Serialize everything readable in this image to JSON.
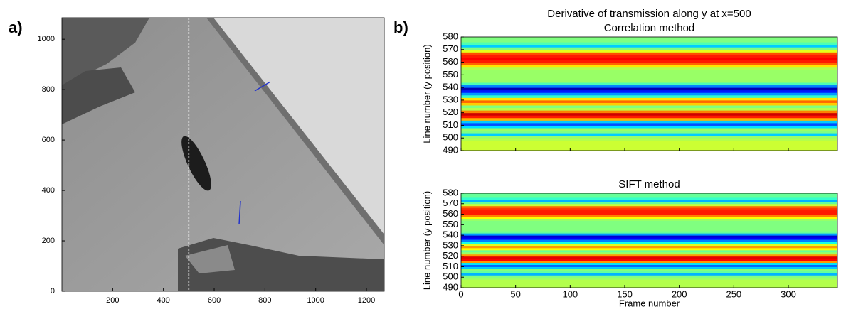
{
  "chart_data": [
    {
      "type": "image",
      "label": "a)",
      "xlim": [
        0,
        1270
      ],
      "ylim": [
        0,
        1085
      ],
      "xticks": [
        200,
        400,
        600,
        800,
        1000,
        1200
      ],
      "yticks": [
        0,
        200,
        400,
        600,
        800,
        1000
      ],
      "vline": 500
    },
    {
      "type": "heatmap",
      "label": "b)",
      "suptitle": "Derivative of transmission along y at x=500",
      "title": "Correlation method",
      "ylabel": "Line number (y position)",
      "colormap": "jet",
      "clim": [
        -1,
        1
      ],
      "xtick_labels": false,
      "xlim": [
        0,
        345
      ],
      "ylim": [
        490,
        580
      ],
      "xticks": [
        0,
        50,
        100,
        150,
        200,
        250,
        300
      ],
      "yticks": [
        490,
        500,
        510,
        520,
        530,
        540,
        550,
        560,
        570,
        580
      ],
      "y_edges": [
        490,
        492,
        494,
        496,
        498,
        500,
        502,
        504,
        506,
        508,
        510,
        512,
        514,
        516,
        518,
        520,
        522,
        524,
        526,
        528,
        530,
        532,
        534,
        536,
        538,
        540,
        542,
        544,
        546,
        548,
        550,
        552,
        554,
        556,
        558,
        560,
        562,
        564,
        566,
        568,
        570,
        572,
        574,
        576,
        578,
        580
      ],
      "values": [
        0.15,
        0.15,
        0.15,
        0.15,
        0.1,
        0.05,
        -0.35,
        0.0,
        0.05,
        -0.3,
        -0.6,
        -0.35,
        0.4,
        0.7,
        0.85,
        0.5,
        0.1,
        0.0,
        0.35,
        0.55,
        0.3,
        -0.15,
        -0.45,
        -0.7,
        -0.9,
        -0.5,
        -0.1,
        0.05,
        0.05,
        0.05,
        0.05,
        0.05,
        0.1,
        0.3,
        0.55,
        0.7,
        0.75,
        0.7,
        0.6,
        0.2,
        0.0,
        -0.35,
        -0.1,
        0.0,
        0.0
      ]
    },
    {
      "type": "heatmap",
      "title": "SIFT method",
      "ylabel": "Line number (y position)",
      "xlabel": "Frame number",
      "colormap": "jet",
      "clim": [
        -1,
        1
      ],
      "xtick_labels": true,
      "xlim": [
        0,
        345
      ],
      "ylim": [
        490,
        580
      ],
      "xticks": [
        0,
        50,
        100,
        150,
        200,
        250,
        300
      ],
      "yticks": [
        490,
        500,
        510,
        520,
        530,
        540,
        550,
        560,
        570,
        580
      ],
      "y_edges": [
        490,
        492,
        494,
        496,
        498,
        500,
        502,
        504,
        506,
        508,
        510,
        512,
        514,
        516,
        518,
        520,
        522,
        524,
        526,
        528,
        530,
        532,
        534,
        536,
        538,
        540,
        542,
        544,
        546,
        548,
        550,
        552,
        554,
        556,
        558,
        560,
        562,
        564,
        566,
        568,
        570,
        572,
        574,
        576,
        578,
        580
      ],
      "values": [
        0.1,
        0.1,
        0.1,
        0.1,
        0.05,
        0.0,
        -0.4,
        -0.05,
        0.0,
        -0.35,
        -0.55,
        -0.3,
        0.45,
        0.75,
        0.8,
        0.45,
        0.05,
        -0.05,
        0.25,
        0.45,
        0.2,
        -0.2,
        -0.5,
        -0.75,
        -0.85,
        -0.45,
        -0.05,
        0.0,
        0.0,
        0.0,
        0.0,
        0.0,
        0.05,
        0.25,
        0.5,
        0.7,
        0.7,
        0.65,
        0.55,
        0.15,
        -0.05,
        -0.4,
        -0.15,
        -0.05,
        -0.05
      ]
    }
  ]
}
